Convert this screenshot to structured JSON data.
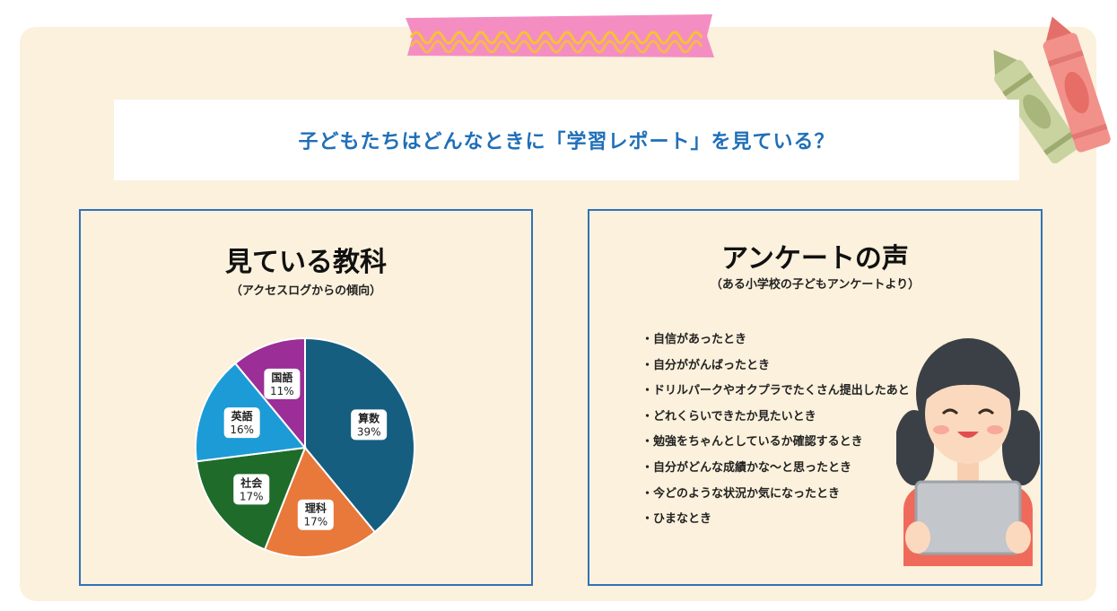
{
  "title": "子どもたちはどんなときに「学習レポート」を見ている？",
  "left_panel": {
    "title": "見ている教科",
    "subtitle": "（アクセスログからの傾向）"
  },
  "right_panel": {
    "title": "アンケートの声",
    "subtitle": "（ある小学校の子どもアンケートより）",
    "items": [
      "・自信があったとき",
      "・自分ががんばったとき",
      "・ドリルパークやオクプラでたくさん提出したあと",
      "・どれくらいできたか見たいとき",
      "・勉強をちゃんとしているか確認するとき",
      "・自分がどんな成績かな～と思ったとき",
      "・今どのような状況か気になったとき",
      "・ひまなとき"
    ]
  },
  "colors": {
    "accent": "#1f6fb8",
    "panel_border": "#2f72b8",
    "board": "#fbf1dc"
  },
  "chart_data": {
    "type": "pie",
    "categories": [
      "算数",
      "理科",
      "社会",
      "英語",
      "国語"
    ],
    "values": [
      39,
      17,
      17,
      16,
      11
    ],
    "labels": [
      "39%",
      "17%",
      "17%",
      "16%",
      "11%"
    ],
    "colors": [
      "#155e80",
      "#e8793a",
      "#1e6b2a",
      "#1c9bd6",
      "#9b2e97"
    ]
  }
}
